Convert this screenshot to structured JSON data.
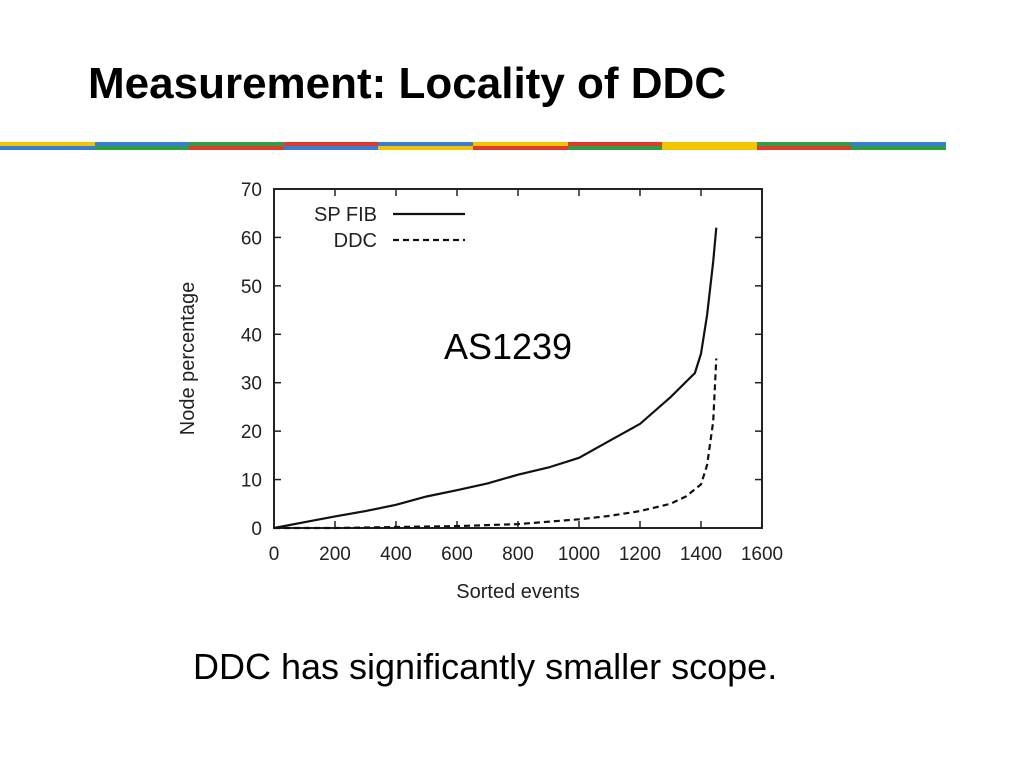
{
  "slide": {
    "title": "Measurement: Locality of DDC",
    "caption": "DDC has significantly smaller scope."
  },
  "stripe_colors": {
    "top": [
      "#f2c500",
      "#3a7bd5",
      "#2e9e44",
      "#e03a2a",
      "#3a7bd5",
      "#f2c500",
      "#e03a2a",
      "#f2c500",
      "#2e9e44",
      "#3a7bd5"
    ],
    "bottom": [
      "#3a7bd5",
      "#2e9e44",
      "#e03a2a",
      "#3a7bd5",
      "#f2c500",
      "#e03a2a",
      "#2e9e44",
      "#f2c500",
      "#e03a2a",
      "#2e9e44"
    ]
  },
  "chart_data": {
    "type": "line",
    "title": "",
    "annotation": "AS1239",
    "xlabel": "Sorted events",
    "ylabel": "Node percentage",
    "xlim": [
      0,
      1600
    ],
    "ylim": [
      0,
      70
    ],
    "xticks": [
      "0",
      "200",
      "400",
      "600",
      "800",
      "1000",
      "1200",
      "1400",
      "1600"
    ],
    "yticks": [
      "0",
      "10",
      "20",
      "30",
      "40",
      "50",
      "60",
      "70"
    ],
    "legend_position": "top-left",
    "grid": false,
    "series": [
      {
        "name": "SP FIB",
        "style": "solid",
        "x": [
          0,
          100,
          200,
          300,
          400,
          500,
          600,
          700,
          800,
          900,
          1000,
          1100,
          1200,
          1300,
          1380,
          1400,
          1420,
          1440,
          1450
        ],
        "y": [
          0,
          1.2,
          2.4,
          3.5,
          4.8,
          6.5,
          7.8,
          9.2,
          11,
          12.5,
          14.5,
          18,
          21.5,
          27,
          32,
          36,
          44,
          55,
          62
        ]
      },
      {
        "name": "DDC",
        "style": "dashed",
        "x": [
          0,
          200,
          400,
          600,
          800,
          1000,
          1100,
          1200,
          1300,
          1350,
          1400,
          1420,
          1440,
          1450
        ],
        "y": [
          0,
          0,
          0.2,
          0.4,
          0.8,
          1.8,
          2.5,
          3.5,
          5,
          6.5,
          9,
          13,
          22,
          35
        ]
      }
    ]
  }
}
